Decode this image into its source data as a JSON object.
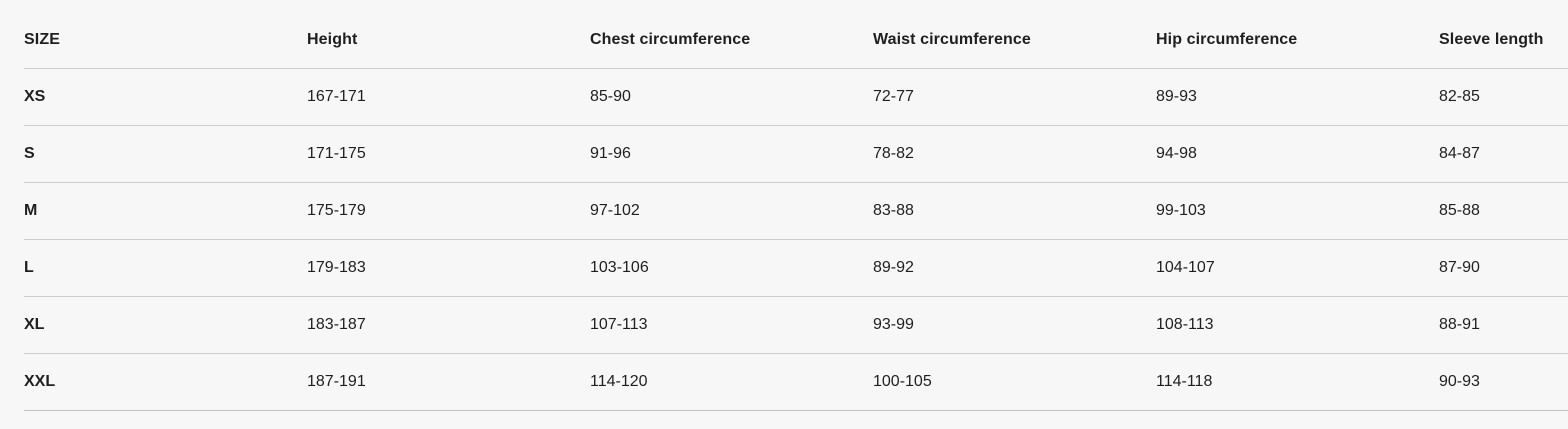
{
  "page": {
    "background_color": "#f7f7f7",
    "text_color": "#1f1f1f",
    "divider_color": "#cdcdcd",
    "bottom_border_color": "#c0c0c0"
  },
  "table": {
    "columns": [
      "SIZE",
      "Height",
      "Chest circumference",
      "Waist circumference",
      "Hip circumference",
      "Sleeve length"
    ],
    "rows": [
      {
        "size": "XS",
        "height": "167-171",
        "chest": "85-90",
        "waist": "72-77",
        "hip": "89-93",
        "sleeve": "82-85"
      },
      {
        "size": "S",
        "height": "171-175",
        "chest": "91-96",
        "waist": "78-82",
        "hip": "94-98",
        "sleeve": "84-87"
      },
      {
        "size": "M",
        "height": "175-179",
        "chest": "97-102",
        "waist": "83-88",
        "hip": "99-103",
        "sleeve": "85-88"
      },
      {
        "size": "L",
        "height": "179-183",
        "chest": "103-106",
        "waist": "89-92",
        "hip": "104-107",
        "sleeve": "87-90"
      },
      {
        "size": "XL",
        "height": "183-187",
        "chest": "107-113",
        "waist": "93-99",
        "hip": "108-113",
        "sleeve": "88-91"
      },
      {
        "size": "XXL",
        "height": "187-191",
        "chest": "114-120",
        "waist": "100-105",
        "hip": "114-118",
        "sleeve": "90-93"
      }
    ]
  }
}
